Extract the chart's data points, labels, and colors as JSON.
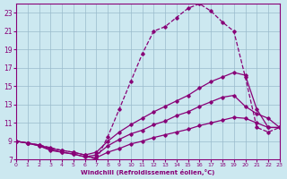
{
  "bg_color": "#cce8f0",
  "line_color": "#880077",
  "grid_color": "#99bbcc",
  "xlabel": "Windchill (Refroidissement éolien,°C)",
  "xlim": [
    0,
    23
  ],
  "ylim": [
    7,
    24
  ],
  "xticks": [
    0,
    1,
    2,
    3,
    4,
    5,
    6,
    7,
    8,
    9,
    10,
    11,
    12,
    13,
    14,
    15,
    16,
    17,
    18,
    19,
    20,
    21,
    22,
    23
  ],
  "yticks": [
    7,
    9,
    11,
    13,
    15,
    17,
    19,
    21,
    23
  ],
  "curve_dashed_x": [
    0,
    1,
    2,
    3,
    4,
    5,
    6,
    7,
    8,
    9,
    10,
    11,
    12,
    13,
    14,
    15,
    16,
    17,
    18,
    19,
    20,
    21,
    22,
    23
  ],
  "curve_dashed_y": [
    9.0,
    8.8,
    8.6,
    8.3,
    8.0,
    7.8,
    7.5,
    7.0,
    9.5,
    12.5,
    15.5,
    18.5,
    21.0,
    21.5,
    22.5,
    23.5,
    24.0,
    23.2,
    22.0,
    21.0,
    16.0,
    10.5,
    10.0,
    10.5
  ],
  "curve_a_x": [
    0,
    1,
    2,
    3,
    4,
    5,
    6,
    7,
    8,
    9,
    10,
    11,
    12,
    13,
    14,
    15,
    16,
    17,
    18,
    19,
    20,
    21,
    22,
    23
  ],
  "curve_a_y": [
    9.0,
    8.8,
    8.6,
    8.2,
    8.0,
    7.8,
    7.5,
    7.8,
    9.0,
    10.0,
    10.8,
    11.5,
    12.2,
    12.8,
    13.4,
    14.0,
    14.8,
    15.5,
    16.0,
    16.5,
    16.2,
    12.5,
    10.5,
    10.5
  ],
  "curve_b_x": [
    0,
    1,
    2,
    3,
    4,
    5,
    6,
    7,
    8,
    9,
    10,
    11,
    12,
    13,
    14,
    15,
    16,
    17,
    18,
    19,
    20,
    21,
    22,
    23
  ],
  "curve_b_y": [
    9.0,
    8.8,
    8.5,
    8.1,
    7.8,
    7.6,
    7.3,
    7.5,
    8.5,
    9.2,
    9.8,
    10.2,
    10.8,
    11.2,
    11.8,
    12.2,
    12.8,
    13.3,
    13.8,
    14.0,
    12.8,
    12.0,
    11.5,
    10.5
  ],
  "curve_c_x": [
    0,
    1,
    2,
    3,
    4,
    5,
    6,
    7,
    8,
    9,
    10,
    11,
    12,
    13,
    14,
    15,
    16,
    17,
    18,
    19,
    20,
    21,
    22,
    23
  ],
  "curve_c_y": [
    9.0,
    8.8,
    8.5,
    8.0,
    7.8,
    7.6,
    7.3,
    7.2,
    7.8,
    8.2,
    8.7,
    9.0,
    9.4,
    9.7,
    10.0,
    10.3,
    10.7,
    11.0,
    11.3,
    11.6,
    11.5,
    11.0,
    10.5,
    10.5
  ]
}
